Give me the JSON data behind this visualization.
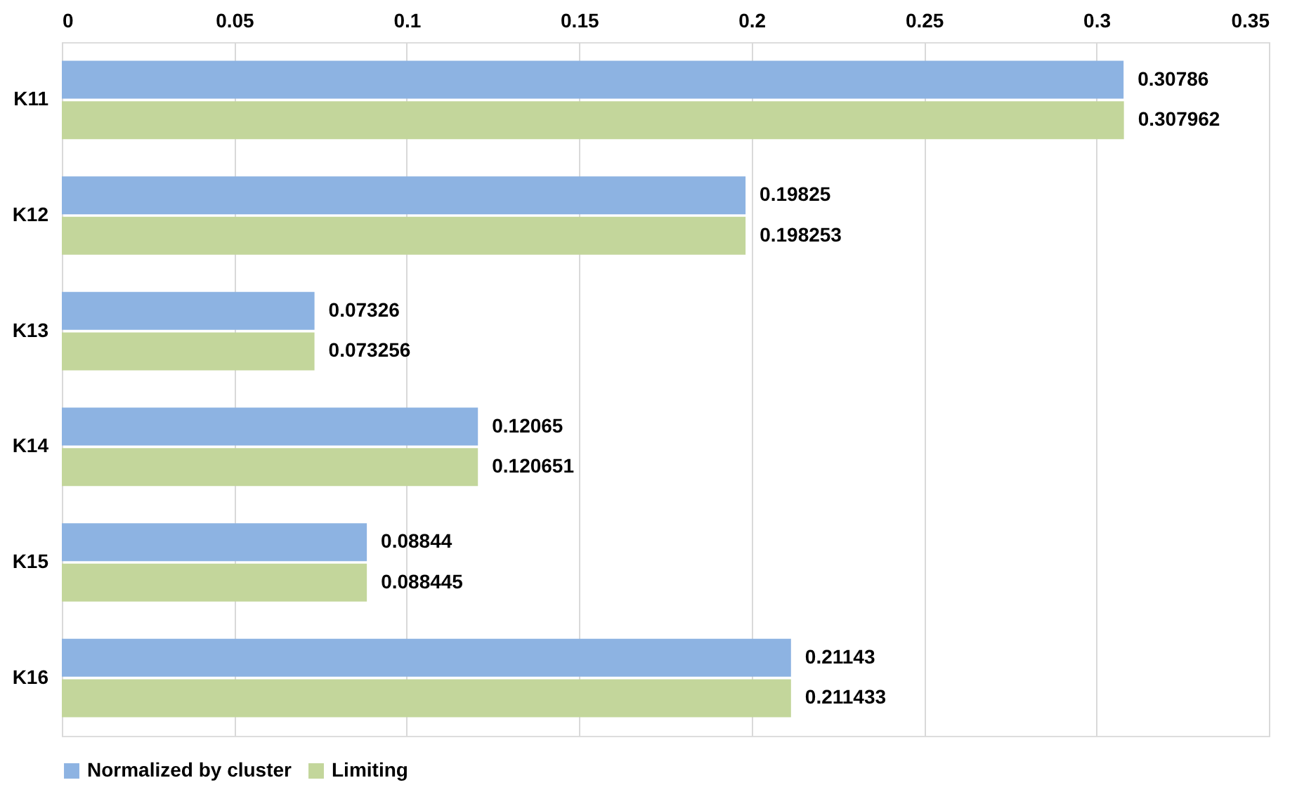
{
  "chart_data": {
    "type": "bar",
    "orientation": "horizontal",
    "categories": [
      "K11",
      "K12",
      "K13",
      "K14",
      "K15",
      "K16"
    ],
    "series": [
      {
        "name": "Normalized by cluster",
        "color": "#8db3e2",
        "values": [
          0.30786,
          0.19825,
          0.07326,
          0.12065,
          0.08844,
          0.21143
        ]
      },
      {
        "name": "Limiting",
        "color": "#c3d69b",
        "values": [
          0.307962,
          0.198253,
          0.073256,
          0.120651,
          0.088445,
          0.211433
        ]
      }
    ],
    "xlim": [
      0,
      0.35
    ],
    "xticks": [
      0,
      0.05,
      0.1,
      0.15,
      0.2,
      0.25,
      0.3,
      0.35
    ],
    "grid": "x",
    "legend": "bottom",
    "data_labels": true
  }
}
